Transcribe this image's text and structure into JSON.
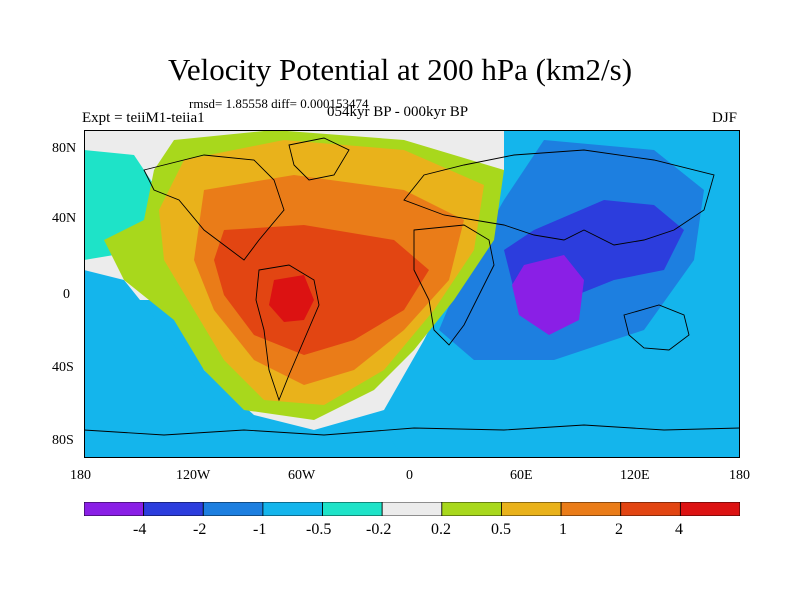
{
  "header": {
    "title": "Velocity Potential at 200 hPa (km2/s)",
    "stats": "rmsd= 1.85558 diff= 0.000153474",
    "experiment": "Expt = teiiM1-teiia1",
    "period": "054kyr BP - 000kyr BP",
    "season": "DJF"
  },
  "axes": {
    "y_ticks": [
      "80N",
      "40N",
      "0",
      "40S",
      "80S"
    ],
    "x_ticks": [
      "180",
      "120W",
      "60W",
      "0",
      "60E",
      "120E",
      "180"
    ]
  },
  "colorbar": {
    "labels": [
      "-4",
      "-2",
      "-1",
      "-0.5",
      "-0.2",
      "0.2",
      "0.5",
      "1",
      "2",
      "4"
    ],
    "colors": [
      "#8a1fe6",
      "#2c3ddd",
      "#1d7fe0",
      "#14b5ec",
      "#1ee3c8",
      "#ececec",
      "#a8d81c",
      "#e9b21b",
      "#ea7c18",
      "#e24512",
      "#dc1212"
    ]
  },
  "map": {
    "background_color": "#ececec",
    "land_outline_color": "#000000"
  }
}
